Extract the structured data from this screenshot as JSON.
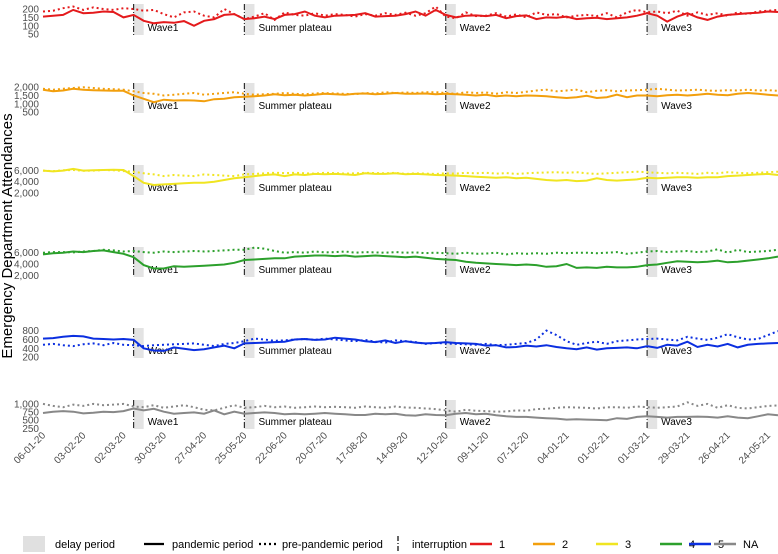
{
  "chart_data": {
    "type": "line",
    "ylabel": "Emergency Department Attendances",
    "x_dates": [
      "06-01-20",
      "13-01-20",
      "20-01-20",
      "27-01-20",
      "03-02-20",
      "10-02-20",
      "17-02-20",
      "24-02-20",
      "02-03-20",
      "09-03-20",
      "16-03-20",
      "23-03-20",
      "30-03-20",
      "06-04-20",
      "13-04-20",
      "20-04-20",
      "27-04-20",
      "04-05-20",
      "11-05-20",
      "18-05-20",
      "25-05-20",
      "01-06-20",
      "08-06-20",
      "15-06-20",
      "22-06-20",
      "29-06-20",
      "06-07-20",
      "13-07-20",
      "20-07-20",
      "27-07-20",
      "03-08-20",
      "10-08-20",
      "17-08-20",
      "24-08-20",
      "31-08-20",
      "07-09-20",
      "14-09-20",
      "21-09-20",
      "28-09-20",
      "05-10-20",
      "12-10-20",
      "19-10-20",
      "26-10-20",
      "02-11-20",
      "09-11-20",
      "16-11-20",
      "23-11-20",
      "30-11-20",
      "07-12-20",
      "14-12-20",
      "21-12-20",
      "28-12-20",
      "04-01-21",
      "11-01-21",
      "18-01-21",
      "25-01-21",
      "01-02-21",
      "08-02-21",
      "15-02-21",
      "22-02-21",
      "01-03-21",
      "08-03-21",
      "15-03-21",
      "22-03-21",
      "29-03-21",
      "05-04-21",
      "12-04-21",
      "19-04-21",
      "26-04-21",
      "03-05-21",
      "10-05-21",
      "17-05-21",
      "24-05-21",
      "31-05-21"
    ],
    "x_tick_labels": [
      "06-01-20",
      "03-02-20",
      "02-03-20",
      "30-03-20",
      "27-04-20",
      "25-05-20",
      "22-06-20",
      "20-07-20",
      "17-08-20",
      "14-09-20",
      "12-10-20",
      "09-11-20",
      "07-12-20",
      "04-01-21",
      "01-02-21",
      "01-03-21",
      "29-03-21",
      "26-04-21",
      "24-05-21"
    ],
    "interruptions": [
      "09-03-20",
      "25-05-20",
      "12-10-20",
      "01-03-21"
    ],
    "delay_periods": [
      [
        "09-03-20",
        "16-03-20"
      ],
      [
        "25-05-20",
        "01-06-20"
      ],
      [
        "12-10-20",
        "19-10-20"
      ],
      [
        "01-03-21",
        "08-03-21"
      ]
    ],
    "period_labels": [
      {
        "text": "Wave1",
        "start": "16-03-20"
      },
      {
        "text": "Summer plateau",
        "start": "01-06-20"
      },
      {
        "text": "Wave2",
        "start": "19-10-20"
      },
      {
        "text": "Wave3",
        "start": "08-03-21"
      }
    ],
    "panels": [
      {
        "group": "1",
        "color": "#e41a1c",
        "yticks": [
          50,
          100,
          150,
          200
        ],
        "ylim": [
          45,
          230
        ],
        "pandemic": [
          155,
          160,
          165,
          195,
          175,
          178,
          185,
          182,
          150,
          165,
          130,
          115,
          122,
          118,
          128,
          100,
          130,
          140,
          165,
          170,
          140,
          145,
          155,
          140,
          165,
          170,
          185,
          160,
          150,
          160,
          162,
          165,
          175,
          155,
          158,
          160,
          170,
          185,
          160,
          195,
          165,
          150,
          160,
          162,
          158,
          165,
          145,
          158,
          162,
          140,
          150,
          148,
          155,
          140,
          145,
          148,
          140,
          145,
          150,
          160,
          175,
          160,
          125,
          155,
          175,
          150,
          135,
          155,
          165,
          170,
          175,
          178,
          185,
          182
        ],
        "prepandemic": [
          185,
          190,
          205,
          215,
          195,
          210,
          200,
          195,
          205,
          200,
          190,
          195,
          170,
          150,
          180,
          185,
          160,
          150,
          200,
          170,
          140,
          155,
          175,
          135,
          180,
          165,
          160,
          175,
          160,
          170,
          165,
          155,
          170,
          160,
          175,
          165,
          178,
          160,
          175,
          215,
          155,
          145,
          180,
          158,
          160,
          175,
          155,
          168,
          150,
          180,
          165,
          170,
          150,
          160,
          165,
          158,
          175,
          150,
          180,
          195,
          180,
          185,
          175,
          190,
          160,
          180,
          165,
          175,
          160,
          180,
          170,
          185,
          190,
          195
        ]
      },
      {
        "group": "2",
        "color": "#f29f0d",
        "yticks": [
          500,
          1000,
          1500,
          2000
        ],
        "ylim": [
          450,
          2250
        ],
        "pandemic": [
          1850,
          1750,
          1800,
          1900,
          1850,
          1820,
          1800,
          1790,
          1780,
          1500,
          1300,
          1100,
          1250,
          1200,
          1220,
          1200,
          1150,
          1280,
          1300,
          1400,
          1420,
          1450,
          1500,
          1580,
          1520,
          1550,
          1500,
          1550,
          1600,
          1580,
          1550,
          1600,
          1620,
          1580,
          1600,
          1650,
          1600,
          1600,
          1620,
          1580,
          1600,
          1580,
          1550,
          1500,
          1550,
          1450,
          1500,
          1450,
          1500,
          1480,
          1450,
          1400,
          1350,
          1400,
          1480,
          1350,
          1400,
          1550,
          1400,
          1500,
          1500,
          1450,
          1520,
          1550,
          1500,
          1550,
          1600,
          1550,
          1520,
          1600,
          1650,
          1600,
          1550,
          1500
        ],
        "prepandemic": [
          1900,
          1850,
          1900,
          1950,
          2000,
          1950,
          1900,
          1880,
          1850,
          1750,
          1650,
          1600,
          1500,
          1550,
          1600,
          1650,
          1550,
          1600,
          1650,
          1700,
          1600,
          1550,
          1580,
          1600,
          1650,
          1600,
          1580,
          1620,
          1650,
          1620,
          1600,
          1580,
          1650,
          1620,
          1700,
          1650,
          1680,
          1650,
          1700,
          1700,
          1650,
          1600,
          1700,
          1650,
          1680,
          1600,
          1700,
          1650,
          1720,
          1800,
          1850,
          1750,
          1800,
          1850,
          1700,
          1780,
          1820,
          1750,
          1800,
          1820,
          1850,
          1900,
          1850,
          1800,
          1820,
          1850,
          1800,
          1780,
          1820,
          1800,
          1850,
          1800,
          1820,
          1780
        ]
      },
      {
        "group": "3",
        "color": "#f0e521",
        "yticks": [
          2000,
          4000,
          6000
        ],
        "ylim": [
          1600,
          7000
        ],
        "pandemic": [
          6000,
          5850,
          6000,
          6300,
          6000,
          6050,
          6100,
          6150,
          6100,
          5000,
          3800,
          3400,
          3500,
          3600,
          3700,
          3800,
          3800,
          4000,
          4300,
          4600,
          4800,
          5000,
          5200,
          5300,
          5000,
          5300,
          5200,
          5400,
          5350,
          5400,
          5300,
          5200,
          5500,
          5400,
          5400,
          5500,
          5350,
          5400,
          5300,
          5200,
          5150,
          5100,
          5000,
          4900,
          4800,
          4700,
          4800,
          4600,
          4700,
          4500,
          4300,
          4200,
          4300,
          4100,
          4200,
          4600,
          4300,
          4200,
          4300,
          4400,
          4700,
          4600,
          4700,
          4800,
          4800,
          4700,
          4800,
          4800,
          5000,
          5100,
          5200,
          5300,
          5400,
          5200
        ],
        "prepandemic": [
          6000,
          5900,
          6050,
          6100,
          5950,
          6000,
          6100,
          6050,
          5900,
          5800,
          5500,
          5300,
          5000,
          5200,
          5100,
          5000,
          5300,
          5200,
          5100,
          5000,
          5300,
          5400,
          5500,
          5600,
          5550,
          5600,
          5500,
          5450,
          5600,
          5550,
          5450,
          5500,
          5600,
          5550,
          5500,
          5600,
          5400,
          5500,
          5450,
          5400,
          5500,
          5450,
          5600,
          5500,
          5600,
          5450,
          5550,
          5400,
          5500,
          5600,
          5650,
          5700,
          5600,
          5700,
          5500,
          5400,
          5500,
          5600,
          5700,
          5800,
          5700,
          5600,
          5500,
          5600,
          5500,
          5400,
          5600,
          5500,
          5700,
          5600,
          5500,
          5600,
          5700,
          5800
        ]
      },
      {
        "group": "4",
        "color": "#2ca02c",
        "yticks": [
          2000,
          4000,
          6000
        ],
        "ylim": [
          1700,
          7000
        ],
        "pandemic": [
          5700,
          5900,
          6000,
          6200,
          6100,
          6300,
          6400,
          6100,
          5800,
          5200,
          3800,
          3200,
          3200,
          3600,
          3500,
          3600,
          3700,
          3800,
          3900,
          4200,
          4700,
          4800,
          4900,
          5000,
          5000,
          5300,
          5400,
          5500,
          5500,
          5400,
          5500,
          5300,
          5400,
          5500,
          5400,
          5300,
          5200,
          5300,
          5100,
          4900,
          4800,
          4700,
          4400,
          4200,
          4100,
          4000,
          3900,
          3800,
          3900,
          3800,
          3500,
          3600,
          4000,
          3300,
          3400,
          3300,
          3500,
          3400,
          3400,
          3500,
          3800,
          3900,
          4200,
          4500,
          4400,
          4300,
          4400,
          4600,
          4300,
          4400,
          4600,
          4800,
          5000,
          5300
        ],
        "prepandemic": [
          6000,
          6100,
          6100,
          6050,
          6200,
          6300,
          6500,
          6400,
          6200,
          6300,
          6100,
          6000,
          6200,
          6100,
          6200,
          6300,
          6200,
          6300,
          6400,
          6500,
          6500,
          6900,
          6700,
          6300,
          6000,
          6100,
          6000,
          6200,
          6050,
          6100,
          6200,
          6000,
          6100,
          6050,
          6000,
          6100,
          6000,
          6050,
          5900,
          6000,
          5900,
          5800,
          6000,
          5800,
          5850,
          6000,
          5700,
          5900,
          5800,
          5900,
          5800,
          6000,
          5900,
          6000,
          6000,
          5900,
          6000,
          6100,
          5800,
          6000,
          6200,
          6300,
          6100,
          6200,
          6300,
          6100,
          6200,
          6600,
          6000,
          6500,
          6100,
          6200,
          6300,
          6500
        ]
      },
      {
        "group": "5",
        "color": "#0b2fe0",
        "yticks": [
          200,
          400,
          600,
          800
        ],
        "ylim": [
          180,
          860
        ],
        "pandemic": [
          620,
          630,
          660,
          680,
          670,
          620,
          610,
          600,
          610,
          590,
          400,
          350,
          340,
          420,
          390,
          360,
          380,
          420,
          460,
          400,
          510,
          520,
          530,
          540,
          550,
          600,
          610,
          590,
          600,
          640,
          620,
          600,
          560,
          540,
          580,
          520,
          560,
          530,
          510,
          520,
          540,
          520,
          510,
          500,
          460,
          470,
          420,
          430,
          460,
          440,
          470,
          430,
          400,
          380,
          420,
          370,
          400,
          410,
          420,
          400,
          450,
          410,
          480,
          460,
          550,
          430,
          480,
          440,
          500,
          420,
          480,
          500,
          510,
          520
        ],
        "prepandemic": [
          480,
          500,
          470,
          450,
          490,
          510,
          470,
          520,
          480,
          470,
          450,
          470,
          480,
          490,
          500,
          510,
          480,
          450,
          500,
          520,
          560,
          620,
          600,
          570,
          580,
          600,
          610,
          590,
          620,
          600,
          580,
          560,
          590,
          550,
          530,
          580,
          560,
          540,
          500,
          520,
          510,
          500,
          490,
          480,
          500,
          470,
          480,
          500,
          520,
          600,
          800,
          700,
          560,
          480,
          520,
          550,
          500,
          560,
          580,
          600,
          610,
          620,
          600,
          580,
          660,
          620,
          590,
          640,
          720,
          650,
          600,
          610,
          700,
          790
        ]
      },
      {
        "group": "NA",
        "color": "#888888",
        "yticks": [
          250,
          500,
          750,
          1000
        ],
        "ylim": [
          230,
          1120
        ],
        "pandemic": [
          720,
          760,
          780,
          760,
          710,
          730,
          760,
          750,
          780,
          860,
          800,
          850,
          760,
          700,
          720,
          740,
          700,
          800,
          680,
          760,
          700,
          720,
          740,
          720,
          680,
          700,
          680,
          700,
          720,
          700,
          680,
          660,
          660,
          700,
          680,
          700,
          650,
          640,
          680,
          660,
          650,
          700,
          720,
          680,
          700,
          650,
          620,
          600,
          600,
          580,
          560,
          550,
          520,
          530,
          520,
          510,
          500,
          560,
          540,
          600,
          620,
          600,
          580,
          600,
          600,
          610,
          600,
          580,
          620,
          580,
          560,
          620,
          680,
          650
        ],
        "prepandemic": [
          1000,
          940,
          900,
          980,
          940,
          1000,
          960,
          980,
          1000,
          920,
          900,
          960,
          880,
          920,
          960,
          900,
          820,
          800,
          880,
          960,
          880,
          900,
          940,
          900,
          920,
          880,
          900,
          920,
          900,
          910,
          900,
          880,
          920,
          900,
          880,
          920,
          890,
          880,
          860,
          840,
          800,
          760,
          820,
          790,
          780,
          760,
          770,
          800,
          790,
          840,
          850,
          880,
          900,
          890,
          880,
          860,
          900,
          900,
          880,
          920,
          900,
          880,
          900,
          920,
          1050,
          940,
          1000,
          880,
          960,
          880,
          860,
          900,
          940,
          950
        ]
      }
    ],
    "legend": {
      "delay": "delay period",
      "pandemic": "pandemic period",
      "prepandemic": "pre-pandemic period",
      "interruption": "interruption",
      "groups": [
        "1",
        "2",
        "3",
        "4",
        "5",
        "NA"
      ]
    }
  }
}
